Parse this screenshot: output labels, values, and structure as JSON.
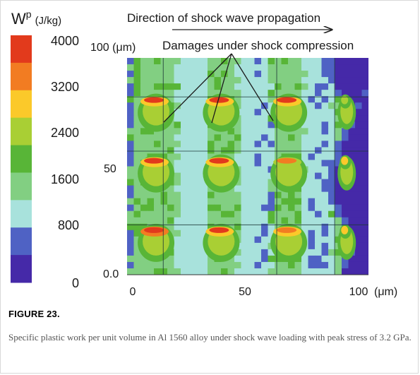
{
  "chart_data": {
    "type": "heatmap",
    "title": "Direction of shock wave propagation",
    "annotation": "Damages under shock compression",
    "colorbar": {
      "label_symbol": "W",
      "label_sup": "p",
      "label_unit": "(J/kg)",
      "ticks": [
        "4000",
        "3200",
        "2400",
        "1600",
        "800",
        "0"
      ],
      "range": [
        0,
        4000
      ],
      "colors": [
        "#e23a1c",
        "#f27c22",
        "#fbc92a",
        "#a9cf34",
        "#58b537",
        "#82cf82",
        "#a8e2dc",
        "#4f62c4",
        "#4529a8"
      ]
    },
    "x_axis": {
      "ticks": [
        "0",
        "50",
        "100"
      ],
      "unit": "(μm)",
      "range": [
        0,
        100
      ]
    },
    "y_axis": {
      "ticks": [
        "100 (μm)",
        "50",
        "0.0"
      ],
      "range": [
        0,
        100
      ]
    },
    "damage_sites": [
      {
        "x": 12,
        "y": 76,
        "w": 3900
      },
      {
        "x": 39,
        "y": 76,
        "w": 3700
      },
      {
        "x": 67,
        "y": 76,
        "w": 3600
      },
      {
        "x": 12,
        "y": 48,
        "w": 3900
      },
      {
        "x": 39,
        "y": 48,
        "w": 3600
      },
      {
        "x": 67,
        "y": 48,
        "w": 3300
      },
      {
        "x": 12,
        "y": 16,
        "w": 4000
      },
      {
        "x": 39,
        "y": 16,
        "w": 3900
      },
      {
        "x": 67,
        "y": 16,
        "w": 3500
      },
      {
        "x": 91,
        "y": 76,
        "w": 2600
      },
      {
        "x": 91,
        "y": 48,
        "w": 2800
      },
      {
        "x": 91,
        "y": 16,
        "w": 2700
      }
    ],
    "grid_lines_x": [
      15,
      62,
      86
    ],
    "grid_lines_y": [
      23,
      57,
      82
    ]
  },
  "caption": {
    "label": "FIGURE 23.",
    "text": "Specific plastic work per unit volume in Al 1560 alloy under shock wave loading with peak stress of 3.2 GPa."
  }
}
